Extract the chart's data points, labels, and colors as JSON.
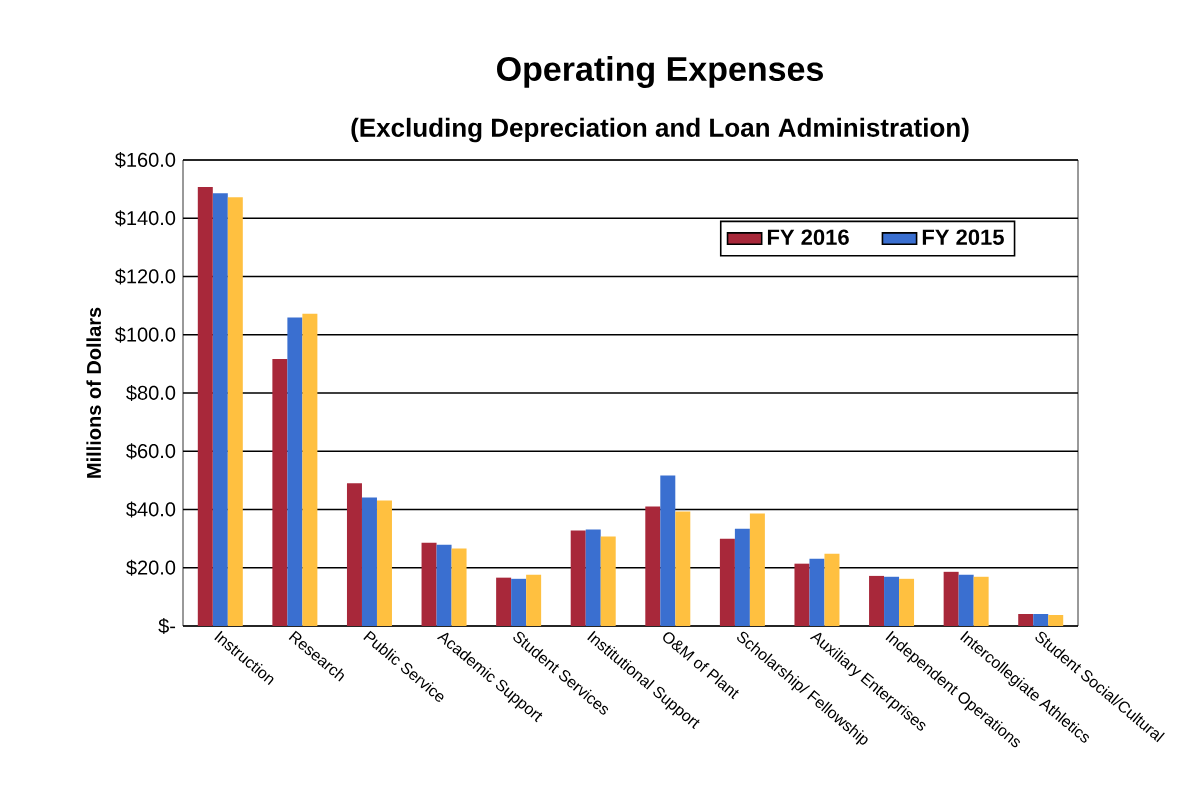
{
  "chart_data": {
    "type": "bar",
    "title": "Operating Expenses",
    "subtitle": "(Excluding Depreciation and Loan Administration)",
    "ylabel": "Millions of Dollars",
    "categories": [
      "Instruction",
      "Research",
      "Public Service",
      "Academic Support",
      "Student Services",
      "Institutional Support",
      "O&M of Plant",
      "Scholarship/ Fellowship",
      "Auxiliary Enterprises",
      "Independent Operations",
      "Intercollegiate Athletics",
      "Student Social/Cultural"
    ],
    "series": [
      {
        "name": "FY 2016",
        "color": "#a8283a",
        "values": [
          150.7,
          91.7,
          49.0,
          28.6,
          16.6,
          32.8,
          41.0,
          30.0,
          21.4,
          17.2,
          18.6,
          4.1
        ]
      },
      {
        "name": "FY 2015",
        "color": "#3a6fd0",
        "values": [
          148.6,
          105.9,
          44.1,
          27.9,
          16.2,
          33.1,
          51.7,
          33.4,
          23.1,
          16.9,
          17.6,
          4.1
        ]
      },
      {
        "color": "#ffc040",
        "values": [
          147.2,
          107.2,
          43.1,
          26.6,
          17.6,
          30.7,
          39.3,
          38.6,
          24.8,
          16.2,
          16.9,
          3.8
        ]
      }
    ],
    "ylim": [
      0,
      160
    ],
    "yticks": [
      {
        "value": 0,
        "label": "$-"
      },
      {
        "value": 20,
        "label": "$20.0"
      },
      {
        "value": 40,
        "label": "$40.0"
      },
      {
        "value": 60,
        "label": "$60.0"
      },
      {
        "value": 80,
        "label": "$80.0"
      },
      {
        "value": 100,
        "label": "$100.0"
      },
      {
        "value": 120,
        "label": "$120.0"
      },
      {
        "value": 140,
        "label": "$140.0"
      },
      {
        "value": 160,
        "label": "$160.0"
      }
    ],
    "grid": "y",
    "legend": "top right"
  }
}
